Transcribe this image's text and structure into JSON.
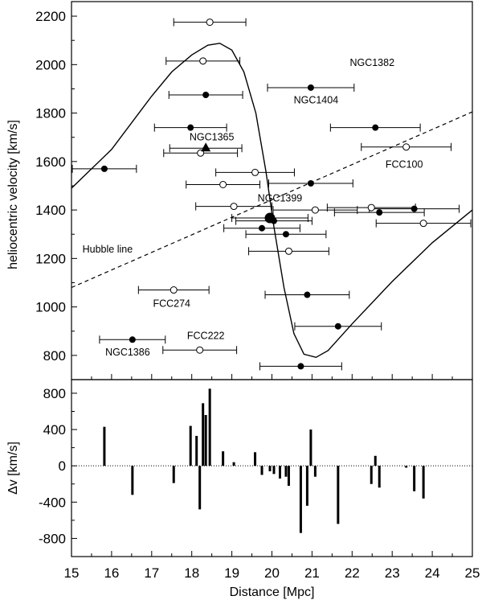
{
  "chart_data": [
    {
      "type": "scatter",
      "panel": "top",
      "xlim": [
        15,
        25
      ],
      "ylim": [
        700,
        2260
      ],
      "xticks": [
        15,
        16,
        17,
        18,
        19,
        20,
        21,
        22,
        23,
        24,
        25
      ],
      "yticks": [
        800,
        1000,
        1200,
        1400,
        1600,
        1800,
        2000,
        2200
      ],
      "ylabel": "heliocentric velocity [km/s]",
      "grid": false,
      "series": [
        {
          "marker": "filled-circle",
          "points": [
            {
              "x": 18.35,
              "y": 1875,
              "xerr": 0.92
            },
            {
              "x": 20.97,
              "y": 1905,
              "xerr": 1.08
            },
            {
              "x": 22.58,
              "y": 1740,
              "xerr": 1.12
            },
            {
              "x": 17.97,
              "y": 1740,
              "xerr": 0.9
            },
            {
              "x": 15.82,
              "y": 1570,
              "xerr": 0.8
            },
            {
              "x": 20.97,
              "y": 1510,
              "xerr": 1.05
            },
            {
              "x": 23.55,
              "y": 1405,
              "xerr": 1.12
            },
            {
              "x": 22.68,
              "y": 1390,
              "xerr": 1.12
            },
            {
              "x": 19.75,
              "y": 1325,
              "xerr": 0.95
            },
            {
              "x": 20.05,
              "y": 1355,
              "xerr": 0.95
            },
            {
              "x": 20.35,
              "y": 1300,
              "xerr": 1.0
            },
            {
              "x": 20.88,
              "y": 1050,
              "xerr": 1.05
            },
            {
              "x": 21.65,
              "y": 920,
              "xerr": 1.08
            },
            {
              "x": 16.52,
              "y": 865,
              "xerr": 0.82
            },
            {
              "x": 20.72,
              "y": 755,
              "xerr": 1.02
            }
          ]
        },
        {
          "marker": "open-circle",
          "points": [
            {
              "x": 18.45,
              "y": 2175,
              "xerr": 0.9
            },
            {
              "x": 18.28,
              "y": 2015,
              "xerr": 0.92
            },
            {
              "x": 23.35,
              "y": 1660,
              "xerr": 1.12
            },
            {
              "x": 18.22,
              "y": 1635,
              "xerr": 0.92
            },
            {
              "x": 19.58,
              "y": 1555,
              "xerr": 0.98
            },
            {
              "x": 18.78,
              "y": 1505,
              "xerr": 0.92
            },
            {
              "x": 19.05,
              "y": 1415,
              "xerr": 0.95
            },
            {
              "x": 21.08,
              "y": 1400,
              "xerr": 1.05
            },
            {
              "x": 22.48,
              "y": 1410,
              "xerr": 1.1
            },
            {
              "x": 23.78,
              "y": 1345,
              "xerr": 1.18
            },
            {
              "x": 20.42,
              "y": 1230,
              "xerr": 1.0
            },
            {
              "x": 17.55,
              "y": 1070,
              "xerr": 0.88
            },
            {
              "x": 18.2,
              "y": 822,
              "xerr": 0.92
            }
          ]
        },
        {
          "marker": "filled-triangle",
          "points": [
            {
              "x": 18.35,
              "y": 1655,
              "xerr": 0.9
            }
          ]
        },
        {
          "marker": "large-filled-circle",
          "points": [
            {
              "x": 19.95,
              "y": 1367,
              "xerr": 0.95
            }
          ]
        },
        {
          "marker": "solid-line",
          "points": [
            {
              "x": 15,
              "y": 1490
            },
            {
              "x": 16,
              "y": 1650
            },
            {
              "x": 17,
              "y": 1870
            },
            {
              "x": 17.5,
              "y": 1970
            },
            {
              "x": 18,
              "y": 2040
            },
            {
              "x": 18.4,
              "y": 2080
            },
            {
              "x": 18.7,
              "y": 2088
            },
            {
              "x": 19.0,
              "y": 2060
            },
            {
              "x": 19.3,
              "y": 1970
            },
            {
              "x": 19.6,
              "y": 1800
            },
            {
              "x": 19.85,
              "y": 1560
            },
            {
              "x": 20.05,
              "y": 1330
            },
            {
              "x": 20.3,
              "y": 1080
            },
            {
              "x": 20.55,
              "y": 890
            },
            {
              "x": 20.8,
              "y": 805
            },
            {
              "x": 21.1,
              "y": 792
            },
            {
              "x": 21.4,
              "y": 820
            },
            {
              "x": 22,
              "y": 930
            },
            {
              "x": 23,
              "y": 1105
            },
            {
              "x": 24,
              "y": 1265
            },
            {
              "x": 25,
              "y": 1400
            }
          ]
        },
        {
          "marker": "dashed-line",
          "points": [
            {
              "x": 15,
              "y": 1080
            },
            {
              "x": 25,
              "y": 1805
            }
          ]
        }
      ],
      "annotations": [
        {
          "text": "NGC1404",
          "x": 21.1,
          "y": 1840
        },
        {
          "text": "NGC1382",
          "x": 22.5,
          "y": 1995
        },
        {
          "text": "NGC1365",
          "x": 18.5,
          "y": 1687
        },
        {
          "text": "FCC100",
          "x": 23.3,
          "y": 1574
        },
        {
          "text": "NGC1399",
          "x": 20.2,
          "y": 1435
        },
        {
          "text": "Hubble line",
          "x": 15.9,
          "y": 1225
        },
        {
          "text": "FCC274",
          "x": 17.5,
          "y": 1000
        },
        {
          "text": "FCC222",
          "x": 18.35,
          "y": 868
        },
        {
          "text": "NGC1386",
          "x": 16.4,
          "y": 800
        }
      ]
    },
    {
      "type": "bar",
      "panel": "bottom",
      "xlim": [
        15,
        25
      ],
      "ylim": [
        -1000,
        950
      ],
      "xticks": [
        15,
        16,
        17,
        18,
        19,
        20,
        21,
        22,
        23,
        24,
        25
      ],
      "yticks": [
        -800,
        -400,
        0,
        400,
        800
      ],
      "xlabel": "Distance [Mpc]",
      "ylabel": "Δv [km/s]",
      "zero_line": "dotted",
      "bars": [
        {
          "x": 15.82,
          "y": 430
        },
        {
          "x": 16.52,
          "y": -320
        },
        {
          "x": 17.55,
          "y": -190
        },
        {
          "x": 17.97,
          "y": 440
        },
        {
          "x": 18.12,
          "y": 330
        },
        {
          "x": 18.2,
          "y": -480
        },
        {
          "x": 18.28,
          "y": 690
        },
        {
          "x": 18.35,
          "y": 560
        },
        {
          "x": 18.45,
          "y": 850
        },
        {
          "x": 18.78,
          "y": 160
        },
        {
          "x": 19.05,
          "y": 40
        },
        {
          "x": 19.58,
          "y": 150
        },
        {
          "x": 19.75,
          "y": -100
        },
        {
          "x": 19.95,
          "y": -60
        },
        {
          "x": 20.05,
          "y": -90
        },
        {
          "x": 20.2,
          "y": -140
        },
        {
          "x": 20.35,
          "y": -120
        },
        {
          "x": 20.42,
          "y": -220
        },
        {
          "x": 20.72,
          "y": -740
        },
        {
          "x": 20.88,
          "y": -440
        },
        {
          "x": 20.97,
          "y": 400
        },
        {
          "x": 21.08,
          "y": -120
        },
        {
          "x": 21.65,
          "y": -640
        },
        {
          "x": 22.48,
          "y": -200
        },
        {
          "x": 22.58,
          "y": 110
        },
        {
          "x": 22.68,
          "y": -240
        },
        {
          "x": 23.35,
          "y": -20
        },
        {
          "x": 23.55,
          "y": -280
        },
        {
          "x": 23.78,
          "y": -360
        }
      ]
    }
  ]
}
